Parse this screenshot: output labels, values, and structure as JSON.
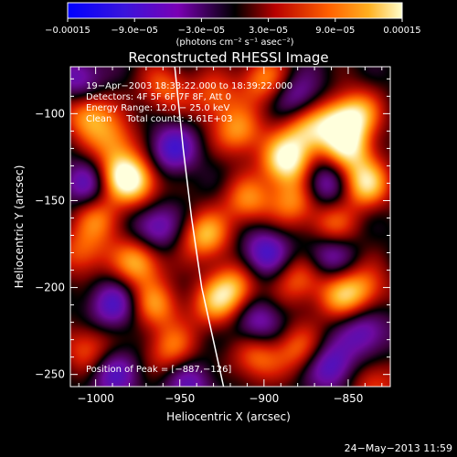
{
  "chart_data": {
    "type": "heatmap",
    "title": "Reconstructed RHESSI Image",
    "xlabel": "Heliocentric X (arcsec)",
    "ylabel": "Heliocentric Y (arcsec)",
    "xlim": [
      -1015,
      -825
    ],
    "ylim": [
      -257,
      -73
    ],
    "xticks": [
      -1000,
      -950,
      -900,
      -850
    ],
    "xtick_labels": [
      "−1000",
      "−950",
      "−900",
      "−850"
    ],
    "yticks": [
      -100,
      -150,
      -200,
      -250
    ],
    "ytick_labels": [
      "−100",
      "−150",
      "−200",
      "−250"
    ],
    "colorbar": {
      "range": [
        -0.00015,
        0.00015
      ],
      "ticks": [
        -0.00015,
        -9e-05,
        -3e-05,
        3e-05,
        9e-05,
        0.00015
      ],
      "tick_labels": [
        "−0.00015",
        "−9.0e−05",
        "−3.0e−05",
        "3.0e−05",
        "9.0e−05",
        "0.00015"
      ],
      "unit_label": "(photons cm⁻² s⁻¹ asec⁻²)",
      "colors": [
        "#0000ff",
        "#5a00c8",
        "#000000",
        "#cc0000",
        "#ff8800",
        "#ffffcc"
      ]
    },
    "annotations": {
      "lines": [
        "19−Apr−2003 18:33:22.000 to 18:39:22.000",
        "Detectors: 4F 5F 6F 7F 8F, Att 0",
        "Energy Range: 12.0 − 25.0 keV",
        "Clean     Total counts: 3.61E+03"
      ],
      "peak": "Position of Peak = [−887,−126]"
    },
    "peak": {
      "x": -887,
      "y": -126
    },
    "limb": [
      {
        "x": -953,
        "y": -73
      },
      {
        "x": -948,
        "y": -120
      },
      {
        "x": -943,
        "y": -160
      },
      {
        "x": -937,
        "y": -200
      },
      {
        "x": -929,
        "y": -235
      },
      {
        "x": -924,
        "y": -257
      }
    ],
    "sources": [
      {
        "x": -887,
        "y": -127,
        "v": 1.0
      },
      {
        "x": -875,
        "y": -110,
        "v": 0.7
      },
      {
        "x": -850,
        "y": -120,
        "v": 0.75
      },
      {
        "x": -858,
        "y": -105,
        "v": 0.6
      },
      {
        "x": -845,
        "y": -100,
        "v": 0.7
      },
      {
        "x": -840,
        "y": -140,
        "v": 0.85
      },
      {
        "x": -915,
        "y": -110,
        "v": 0.65
      },
      {
        "x": -910,
        "y": -150,
        "v": 0.6
      },
      {
        "x": -935,
        "y": -170,
        "v": 0.75
      },
      {
        "x": -918,
        "y": -200,
        "v": 0.7
      },
      {
        "x": -930,
        "y": -210,
        "v": 0.55
      },
      {
        "x": -1005,
        "y": -100,
        "v": 0.7
      },
      {
        "x": -990,
        "y": -115,
        "v": 0.55
      },
      {
        "x": -985,
        "y": -135,
        "v": 0.75
      },
      {
        "x": -975,
        "y": -140,
        "v": 0.6
      },
      {
        "x": -998,
        "y": -160,
        "v": 0.55
      },
      {
        "x": -1008,
        "y": -180,
        "v": 0.5
      },
      {
        "x": -975,
        "y": -185,
        "v": 0.75
      },
      {
        "x": -965,
        "y": -210,
        "v": 0.6
      },
      {
        "x": -955,
        "y": -235,
        "v": 0.55
      },
      {
        "x": -1005,
        "y": -235,
        "v": 0.5
      },
      {
        "x": -882,
        "y": -150,
        "v": 0.6
      },
      {
        "x": -860,
        "y": -165,
        "v": 0.55
      },
      {
        "x": -880,
        "y": -195,
        "v": 0.5
      },
      {
        "x": -855,
        "y": -205,
        "v": 0.6
      },
      {
        "x": -840,
        "y": -200,
        "v": 0.5
      },
      {
        "x": -905,
        "y": -240,
        "v": 0.55
      },
      {
        "x": -880,
        "y": -235,
        "v": 0.5
      },
      {
        "x": -835,
        "y": -255,
        "v": 0.45
      },
      {
        "x": -960,
        "y": -85,
        "v": 0.5
      },
      {
        "x": -930,
        "y": -90,
        "v": 0.5
      },
      {
        "x": -900,
        "y": -80,
        "v": 0.6
      },
      {
        "x": -955,
        "y": -120,
        "v": -0.6
      },
      {
        "x": -965,
        "y": -165,
        "v": -0.55
      },
      {
        "x": -1005,
        "y": -140,
        "v": -0.5
      },
      {
        "x": -990,
        "y": -210,
        "v": -0.55
      },
      {
        "x": -990,
        "y": -250,
        "v": -0.5
      },
      {
        "x": -900,
        "y": -180,
        "v": -0.6
      },
      {
        "x": -905,
        "y": -220,
        "v": -0.5
      },
      {
        "x": -865,
        "y": -140,
        "v": -0.55
      },
      {
        "x": -862,
        "y": -180,
        "v": -0.5
      },
      {
        "x": -860,
        "y": -245,
        "v": -0.6
      },
      {
        "x": -840,
        "y": -225,
        "v": -0.5
      },
      {
        "x": -945,
        "y": -255,
        "v": -0.45
      },
      {
        "x": -1010,
        "y": -80,
        "v": -0.5
      },
      {
        "x": -880,
        "y": -90,
        "v": -0.45
      }
    ]
  },
  "footer": {
    "timestamp": "24−May−2013 11:59"
  }
}
